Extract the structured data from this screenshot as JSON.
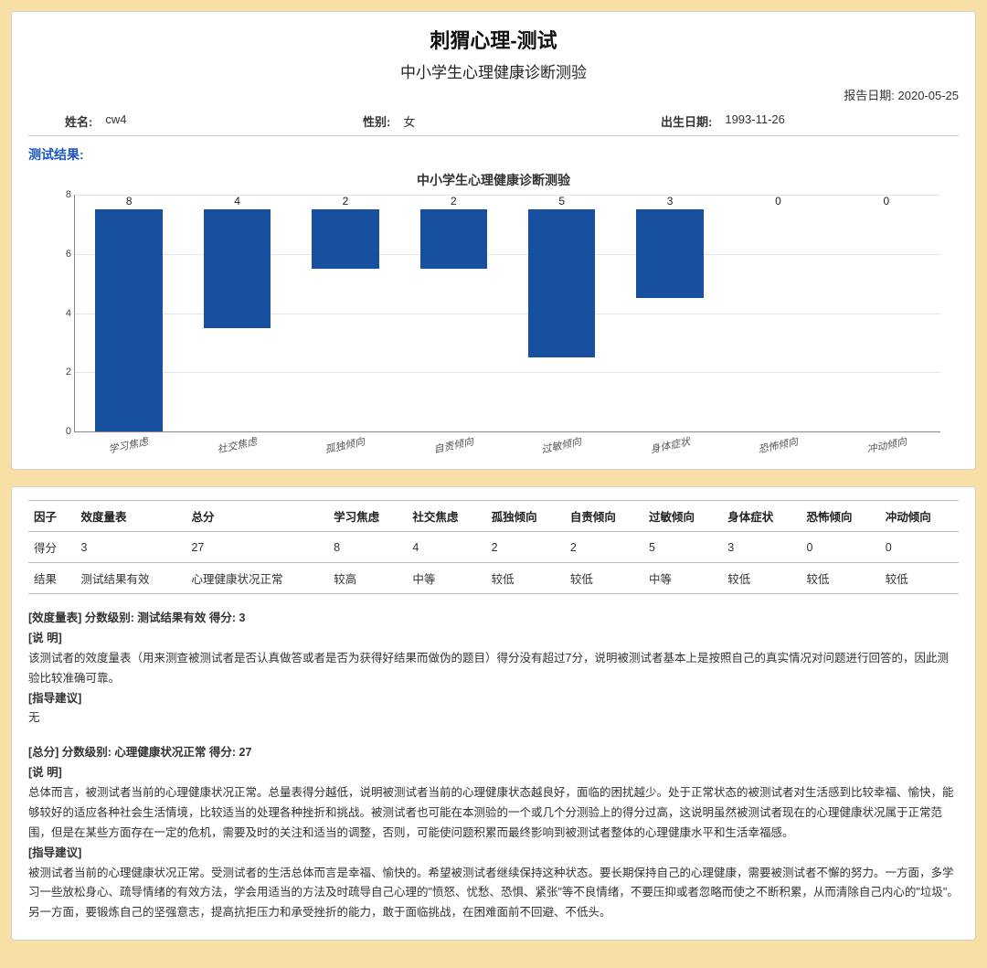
{
  "header": {
    "title_main": "刺猬心理-测试",
    "title_sub": "中小学生心理健康诊断测验",
    "report_date_label": "报告日期:",
    "report_date": "2020-05-25",
    "fields": {
      "name_label": "姓名:",
      "name": "cw4",
      "gender_label": "性别:",
      "gender": "女",
      "birth_label": "出生日期:",
      "birth": "1993-11-26"
    },
    "result_label": "测试结果:"
  },
  "chart": {
    "title": "中小学生心理健康诊断测验",
    "type": "bar",
    "categories": [
      "学习焦虑",
      "社交焦虑",
      "孤独倾向",
      "自责倾向",
      "过敏倾向",
      "身体症状",
      "恐怖倾向",
      "冲动倾向"
    ],
    "values": [
      8,
      4,
      2,
      2,
      5,
      3,
      0,
      0
    ],
    "bar_color": "#16509e",
    "ylim": [
      0,
      8
    ],
    "ytick_step": 2,
    "grid_color": "#e5e5e5",
    "axis_color": "#888888",
    "value_fontsize": 12,
    "xlabel_fontsize": 11,
    "xlabel_rotation_deg": -12
  },
  "table": {
    "columns": [
      "因子",
      "效度量表",
      "总分",
      "学习焦虑",
      "社交焦虑",
      "孤独倾向",
      "自责倾向",
      "过敏倾向",
      "身体症状",
      "恐怖倾向",
      "冲动倾向"
    ],
    "rows": [
      [
        "得分",
        "3",
        "27",
        "8",
        "4",
        "2",
        "2",
        "5",
        "3",
        "0",
        "0"
      ],
      [
        "结果",
        "测试结果有效",
        "心理健康状况正常",
        "较高",
        "中等",
        "较低",
        "较低",
        "中等",
        "较低",
        "较低",
        "较低"
      ]
    ]
  },
  "blocks": [
    {
      "head": "[效度量表] 分数级别: 测试结果有效 得分: 3",
      "sm_label": "[说 明]",
      "sm_text": "该测试者的效度量表（用来测查被测试者是否认真做答或者是否为获得好结果而做伪的题目）得分没有超过7分，说明被测试者基本上是按照自己的真实情况对问题进行回答的，因此测验比较准确可靠。",
      "adv_label": "[指导建议]",
      "adv_text": "无"
    },
    {
      "head": "[总分] 分数级别: 心理健康状况正常 得分: 27",
      "sm_label": "[说 明]",
      "sm_text": "总体而言，被测试者当前的心理健康状况正常。总量表得分越低，说明被测试者当前的心理健康状态越良好，面临的困扰越少。处于正常状态的被测试者对生活感到比较幸福、愉快，能够较好的适应各种社会生活情境，比较适当的处理各种挫折和挑战。被测试者也可能在本测验的一个或几个分测验上的得分过高，这说明虽然被测试者现在的心理健康状况属于正常范围，但是在某些方面存在一定的危机，需要及时的关注和适当的调整，否则，可能使问题积累而最终影响到被测试者整体的心理健康水平和生活幸福感。",
      "adv_label": "[指导建议]",
      "adv_text": "被测试者当前的心理健康状况正常。受测试者的生活总体而言是幸福、愉快的。希望被测试者继续保持这种状态。要长期保持自己的心理健康，需要被测试者不懈的努力。一方面，多学习一些放松身心、疏导情绪的有效方法，学会用适当的方法及时疏导自己心理的\"愤怒、忧愁、恐惧、紧张\"等不良情绪，不要压抑或者忽略而使之不断积累，从而清除自己内心的\"垃圾\"。另一方面，要锻炼自己的坚强意志，提高抗拒压力和承受挫折的能力，敢于面临挑战，在困难面前不回避、不低头。"
    }
  ]
}
